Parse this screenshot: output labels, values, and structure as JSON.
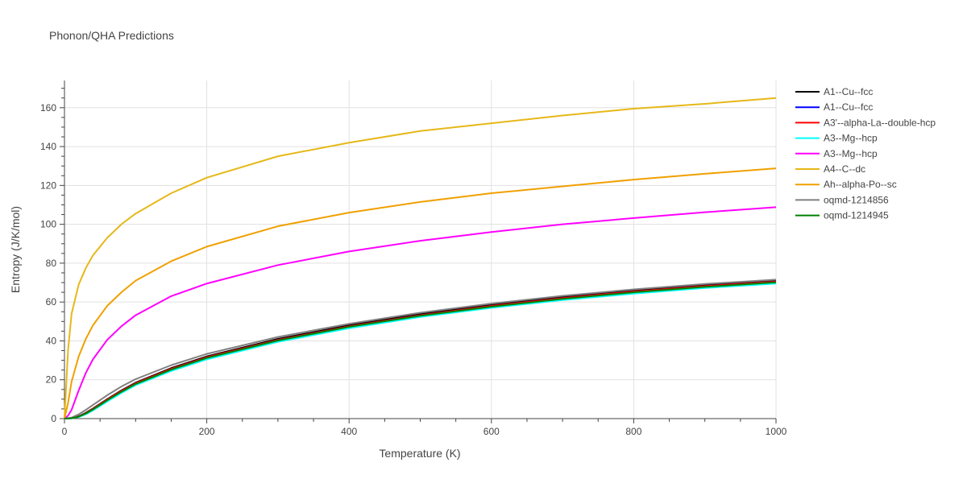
{
  "chart_data": {
    "type": "line",
    "title": "Phonon/QHA Predictions",
    "xlabel": "Temperature (K)",
    "ylabel": "Entropy (J/K/mol)",
    "xlim": [
      0,
      1000
    ],
    "ylim": [
      0,
      174
    ],
    "x_ticks": [
      0,
      200,
      400,
      600,
      800,
      1000
    ],
    "y_ticks": [
      0,
      20,
      40,
      60,
      80,
      100,
      120,
      140,
      160
    ],
    "grid": true,
    "legend_position": "right",
    "series": [
      {
        "name": "A1--Cu--fcc",
        "color": "#000000",
        "x": [
          0,
          10,
          20,
          30,
          40,
          60,
          80,
          100,
          150,
          200,
          300,
          400,
          500,
          600,
          700,
          800,
          900,
          1000
        ],
        "y": [
          0,
          0.2,
          1.2,
          3.0,
          5.2,
          10.0,
          14.5,
          18.5,
          26.0,
          32.0,
          41.0,
          48.0,
          53.8,
          58.5,
          62.5,
          66.0,
          68.8,
          71.0
        ]
      },
      {
        "name": "A1--Cu--fcc",
        "color": "#0000ff",
        "x": [
          0,
          10,
          20,
          30,
          40,
          60,
          80,
          100,
          150,
          200,
          300,
          400,
          500,
          600,
          700,
          800,
          900,
          1000
        ],
        "y": [
          0,
          0.2,
          1.1,
          2.8,
          5.0,
          9.8,
          14.2,
          18.2,
          25.6,
          31.6,
          40.5,
          47.5,
          53.2,
          58.0,
          62.0,
          65.4,
          68.2,
          70.5
        ]
      },
      {
        "name": "A3'--alpha-La--double-hcp",
        "color": "#ff0000",
        "x": [
          0,
          10,
          20,
          30,
          40,
          60,
          80,
          100,
          150,
          200,
          300,
          400,
          500,
          600,
          700,
          800,
          900,
          1000
        ],
        "y": [
          0,
          0.2,
          1.1,
          2.8,
          5.0,
          9.8,
          14.2,
          18.2,
          25.6,
          31.6,
          40.5,
          47.5,
          53.2,
          58.0,
          62.0,
          65.4,
          68.2,
          70.5
        ]
      },
      {
        "name": "A3--Mg--hcp",
        "color": "#00ffff",
        "x": [
          0,
          10,
          20,
          30,
          40,
          60,
          80,
          100,
          150,
          200,
          300,
          400,
          500,
          600,
          700,
          800,
          900,
          1000
        ],
        "y": [
          0,
          0.1,
          0.8,
          2.2,
          4.2,
          8.8,
          13.2,
          17.2,
          24.5,
          30.5,
          39.5,
          46.5,
          52.3,
          57.0,
          61.0,
          64.3,
          67.2,
          69.5
        ]
      },
      {
        "name": "A3--Mg--hcp",
        "color": "#ff00ff",
        "x": [
          0,
          5,
          10,
          20,
          30,
          40,
          60,
          80,
          100,
          150,
          200,
          300,
          400,
          500,
          600,
          700,
          800,
          900,
          1000
        ],
        "y": [
          0,
          1.5,
          4.5,
          14.5,
          23.5,
          30.5,
          40.5,
          47.5,
          53.2,
          63.0,
          69.5,
          79.0,
          86.0,
          91.5,
          96.0,
          100.0,
          103.2,
          106.2,
          108.8
        ]
      },
      {
        "name": "A4--C--dc",
        "color": "#e6b818",
        "x": [
          0,
          5,
          10,
          20,
          30,
          40,
          60,
          80,
          100,
          150,
          200,
          300,
          400,
          500,
          600,
          700,
          800,
          900,
          1000
        ],
        "y": [
          0,
          35,
          54,
          69,
          77.5,
          84,
          93,
          100,
          105.5,
          116,
          124,
          135,
          142,
          148,
          152,
          156,
          159.5,
          162,
          165
        ]
      },
      {
        "name": "Ah--alpha-Po--sc",
        "color": "#f0a000",
        "x": [
          0,
          5,
          10,
          20,
          30,
          40,
          60,
          80,
          100,
          150,
          200,
          300,
          400,
          500,
          600,
          700,
          800,
          900,
          1000
        ],
        "y": [
          0,
          8,
          19,
          32,
          41,
          48,
          58,
          65,
          71,
          81,
          88.5,
          99,
          106,
          111.5,
          116,
          119.5,
          123,
          126,
          128.8
        ]
      },
      {
        "name": "oqmd-1214856",
        "color": "#808080",
        "x": [
          0,
          10,
          20,
          30,
          40,
          60,
          80,
          100,
          150,
          200,
          300,
          400,
          500,
          600,
          700,
          800,
          900,
          1000
        ],
        "y": [
          0,
          0.5,
          2.2,
          4.5,
          7.0,
          12.0,
          16.5,
          20.3,
          27.5,
          33.3,
          42.0,
          48.8,
          54.5,
          59.2,
          63.2,
          66.5,
          69.3,
          71.5
        ]
      },
      {
        "name": "oqmd-1214945",
        "color": "#008000",
        "x": [
          0,
          10,
          20,
          30,
          40,
          60,
          80,
          100,
          150,
          200,
          300,
          400,
          500,
          600,
          700,
          800,
          900,
          1000
        ],
        "y": [
          0,
          0.15,
          1.0,
          2.6,
          4.7,
          9.4,
          13.8,
          17.8,
          25.2,
          31.2,
          40.2,
          47.2,
          52.9,
          57.6,
          61.6,
          65.0,
          67.8,
          70.1
        ]
      }
    ]
  }
}
